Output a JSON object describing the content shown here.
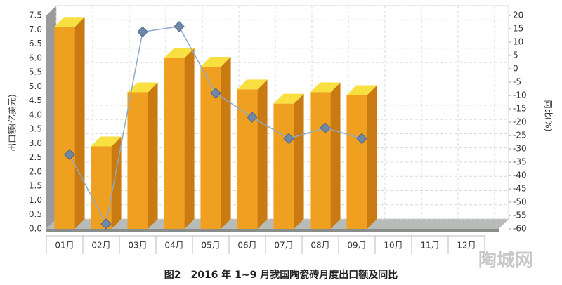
{
  "chart_data": {
    "type": "bar",
    "title": "图2　2016 年 1~9 月我国陶瓷砖月度出口额及同比",
    "y_label": "出口额(亿美元)",
    "y2_label": "同比(%)",
    "watermark": "陶城网",
    "categories": [
      "01月",
      "02月",
      "03月",
      "04月",
      "05月",
      "06月",
      "07月",
      "08月",
      "09月",
      "10月",
      "11月",
      "12月"
    ],
    "series": [
      {
        "name": "出口额",
        "type": "bar",
        "color": "#f0a020",
        "values": [
          7.1,
          2.9,
          4.8,
          6.0,
          5.7,
          4.9,
          4.4,
          4.8,
          4.7,
          null,
          null,
          null
        ]
      },
      {
        "name": "同比",
        "type": "line",
        "axis": "y2",
        "color": "#8fa9c9",
        "values": [
          -34,
          -60,
          12,
          14,
          -11,
          -20,
          -28,
          -24,
          -28,
          null,
          null,
          null
        ]
      }
    ],
    "ylim": [
      0,
      7.5
    ],
    "yticks": [
      {
        "value": 0,
        "label": "0.0"
      },
      0.5,
      {
        "value": 1,
        "label": "1.0"
      },
      1.5,
      {
        "value": 2,
        "label": "2.0"
      },
      2.5,
      {
        "value": 3,
        "label": "3.0"
      },
      3.5,
      {
        "value": 4,
        "label": "4.0"
      },
      4.5,
      {
        "value": 5,
        "label": "5.0"
      },
      5.5,
      {
        "value": 6,
        "label": "6.0"
      },
      6.5,
      {
        "value": 7,
        "label": "7.0"
      },
      7.5
    ],
    "y2lim": [
      -60,
      20
    ],
    "y2ticks": [
      20,
      15,
      10,
      5,
      0,
      -5,
      -10,
      -15,
      -20,
      -25,
      -30,
      -35,
      -40,
      -45,
      -50,
      -55,
      -60
    ],
    "grid": true
  }
}
